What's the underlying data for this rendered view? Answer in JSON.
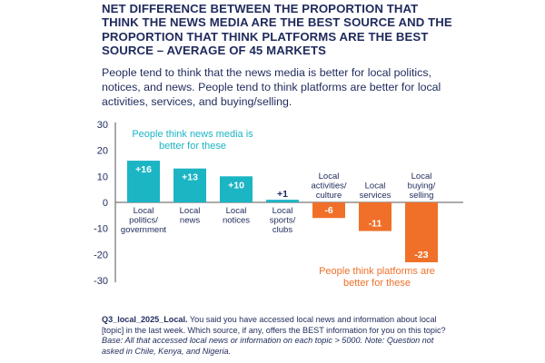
{
  "title": "Net difference between the proportion that think the news media are the best source and the proportion that think platforms are the best source – average of 45 markets",
  "subtitle": "People tend to think that the news media is better for local politics, notices, and news. People tend to think platforms are better for local activities, services, and buying/selling.",
  "colors": {
    "media": "#1bb5c4",
    "platforms": "#f0702a",
    "text": "#1f2a5c",
    "axis": "#555555"
  },
  "chart_data": {
    "type": "bar",
    "categories": [
      "Local politics/ government",
      "Local news",
      "Local notices",
      "Local sports/ clubs",
      "Local activities/ culture",
      "Local services",
      "Local buying/ selling"
    ],
    "category_lines": [
      [
        "Local",
        "politics/",
        "government"
      ],
      [
        "Local",
        "news"
      ],
      [
        "Local",
        "notices"
      ],
      [
        "Local",
        "sports/",
        "clubs"
      ],
      [
        "Local",
        "activities/",
        "culture"
      ],
      [
        "Local",
        "services"
      ],
      [
        "Local",
        "buying/",
        "selling"
      ]
    ],
    "values": [
      16,
      13,
      10,
      1,
      -6,
      -11,
      -23
    ],
    "value_labels": [
      "+16",
      "+13",
      "+10",
      "+1",
      "-6",
      "-11",
      "-23"
    ],
    "ylim": [
      -30,
      30
    ],
    "yticks": [
      30,
      20,
      10,
      0,
      -10,
      -20,
      -30
    ],
    "grid": false,
    "annotations": {
      "media": [
        "People think news media is",
        "better for these"
      ],
      "platforms": [
        "People think platforms are",
        "better for these"
      ]
    }
  },
  "footnote": {
    "question_id": "Q3_local_2025_Local.",
    "question_text": " You said you have accessed local news and information about local [topic] in the last week. Which source, if any, offers the BEST information for you on this topic?",
    "base": "Base: All that accessed local news or information on each topic > 5000. Note: Question not asked in Chile, Kenya, and Nigeria."
  }
}
